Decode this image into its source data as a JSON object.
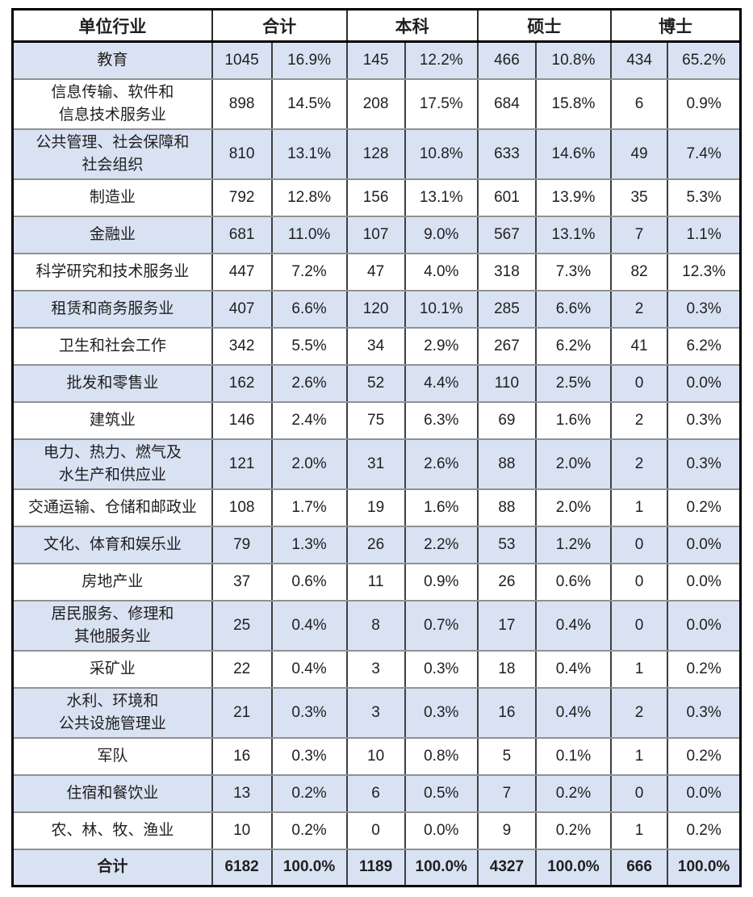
{
  "table": {
    "header": {
      "industry": "单位行业",
      "groups": [
        {
          "label": "合计"
        },
        {
          "label": "本科"
        },
        {
          "label": "硕士"
        },
        {
          "label": "博士"
        }
      ]
    },
    "rows": [
      {
        "label": "教育",
        "values": [
          "1045",
          "16.9%",
          "145",
          "12.2%",
          "466",
          "10.8%",
          "434",
          "65.2%"
        ],
        "shaded": true,
        "lines": 1,
        "total": false
      },
      {
        "label": "信息传输、软件和\n信息技术服务业",
        "values": [
          "898",
          "14.5%",
          "208",
          "17.5%",
          "684",
          "15.8%",
          "6",
          "0.9%"
        ],
        "shaded": false,
        "lines": 2,
        "total": false
      },
      {
        "label": "公共管理、社会保障和\n社会组织",
        "values": [
          "810",
          "13.1%",
          "128",
          "10.8%",
          "633",
          "14.6%",
          "49",
          "7.4%"
        ],
        "shaded": true,
        "lines": 2,
        "total": false
      },
      {
        "label": "制造业",
        "values": [
          "792",
          "12.8%",
          "156",
          "13.1%",
          "601",
          "13.9%",
          "35",
          "5.3%"
        ],
        "shaded": false,
        "lines": 1,
        "total": false
      },
      {
        "label": "金融业",
        "values": [
          "681",
          "11.0%",
          "107",
          "9.0%",
          "567",
          "13.1%",
          "7",
          "1.1%"
        ],
        "shaded": true,
        "lines": 1,
        "total": false
      },
      {
        "label": "科学研究和技术服务业",
        "values": [
          "447",
          "7.2%",
          "47",
          "4.0%",
          "318",
          "7.3%",
          "82",
          "12.3%"
        ],
        "shaded": false,
        "lines": 1,
        "total": false
      },
      {
        "label": "租赁和商务服务业",
        "values": [
          "407",
          "6.6%",
          "120",
          "10.1%",
          "285",
          "6.6%",
          "2",
          "0.3%"
        ],
        "shaded": true,
        "lines": 1,
        "total": false
      },
      {
        "label": "卫生和社会工作",
        "values": [
          "342",
          "5.5%",
          "34",
          "2.9%",
          "267",
          "6.2%",
          "41",
          "6.2%"
        ],
        "shaded": false,
        "lines": 1,
        "total": false
      },
      {
        "label": "批发和零售业",
        "values": [
          "162",
          "2.6%",
          "52",
          "4.4%",
          "110",
          "2.5%",
          "0",
          "0.0%"
        ],
        "shaded": true,
        "lines": 1,
        "total": false
      },
      {
        "label": "建筑业",
        "values": [
          "146",
          "2.4%",
          "75",
          "6.3%",
          "69",
          "1.6%",
          "2",
          "0.3%"
        ],
        "shaded": false,
        "lines": 1,
        "total": false
      },
      {
        "label": "电力、热力、燃气及\n水生产和供应业",
        "values": [
          "121",
          "2.0%",
          "31",
          "2.6%",
          "88",
          "2.0%",
          "2",
          "0.3%"
        ],
        "shaded": true,
        "lines": 2,
        "total": false
      },
      {
        "label": "交通运输、仓储和邮政业",
        "values": [
          "108",
          "1.7%",
          "19",
          "1.6%",
          "88",
          "2.0%",
          "1",
          "0.2%"
        ],
        "shaded": false,
        "lines": 1,
        "total": false
      },
      {
        "label": "文化、体育和娱乐业",
        "values": [
          "79",
          "1.3%",
          "26",
          "2.2%",
          "53",
          "1.2%",
          "0",
          "0.0%"
        ],
        "shaded": true,
        "lines": 1,
        "total": false
      },
      {
        "label": "房地产业",
        "values": [
          "37",
          "0.6%",
          "11",
          "0.9%",
          "26",
          "0.6%",
          "0",
          "0.0%"
        ],
        "shaded": false,
        "lines": 1,
        "total": false
      },
      {
        "label": "居民服务、修理和\n其他服务业",
        "values": [
          "25",
          "0.4%",
          "8",
          "0.7%",
          "17",
          "0.4%",
          "0",
          "0.0%"
        ],
        "shaded": true,
        "lines": 2,
        "total": false
      },
      {
        "label": "采矿业",
        "values": [
          "22",
          "0.4%",
          "3",
          "0.3%",
          "18",
          "0.4%",
          "1",
          "0.2%"
        ],
        "shaded": false,
        "lines": 1,
        "total": false
      },
      {
        "label": "水利、环境和\n公共设施管理业",
        "values": [
          "21",
          "0.3%",
          "3",
          "0.3%",
          "16",
          "0.4%",
          "2",
          "0.3%"
        ],
        "shaded": true,
        "lines": 2,
        "total": false
      },
      {
        "label": "军队",
        "values": [
          "16",
          "0.3%",
          "10",
          "0.8%",
          "5",
          "0.1%",
          "1",
          "0.2%"
        ],
        "shaded": false,
        "lines": 1,
        "total": false
      },
      {
        "label": "住宿和餐饮业",
        "values": [
          "13",
          "0.2%",
          "6",
          "0.5%",
          "7",
          "0.2%",
          "0",
          "0.0%"
        ],
        "shaded": true,
        "lines": 1,
        "total": false
      },
      {
        "label": "农、林、牧、渔业",
        "values": [
          "10",
          "0.2%",
          "0",
          "0.0%",
          "9",
          "0.2%",
          "1",
          "0.2%"
        ],
        "shaded": false,
        "lines": 1,
        "total": false
      },
      {
        "label": "合计",
        "values": [
          "6182",
          "100.0%",
          "1189",
          "100.0%",
          "4327",
          "100.0%",
          "666",
          "100.0%"
        ],
        "shaded": true,
        "lines": 1,
        "total": true
      }
    ]
  },
  "colors": {
    "row_shade": "#d9e2f3",
    "grid_horizontal": "#919191",
    "grid_vertical": "#3f3f3f",
    "outer_border": "#000000",
    "text": "#1f1f1f"
  }
}
